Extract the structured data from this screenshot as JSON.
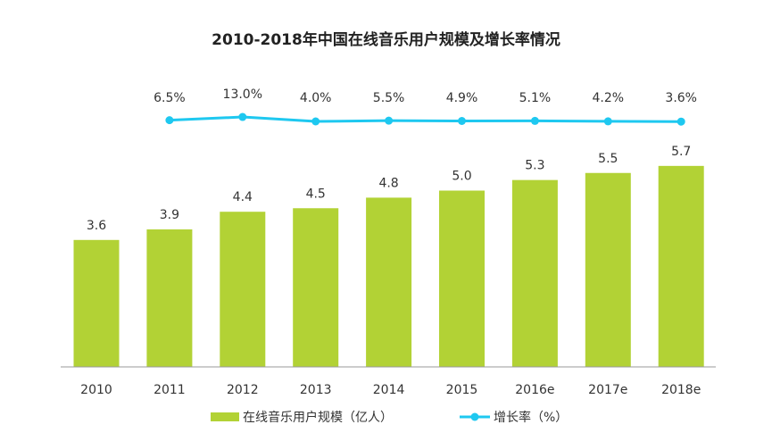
{
  "chart_data": {
    "type": "bar+line",
    "title": "2010-2018年中国在线音乐用户规模及增长率情况",
    "categories": [
      "2010",
      "2011",
      "2012",
      "2013",
      "2014",
      "2015",
      "2016e",
      "2017e",
      "2018e"
    ],
    "series": [
      {
        "name": "在线音乐用户规模（亿人）",
        "type": "bar",
        "color": "#b2d235",
        "values": [
          3.6,
          3.9,
          4.4,
          4.5,
          4.8,
          5.0,
          5.3,
          5.5,
          5.7
        ],
        "labels": [
          "3.6",
          "3.9",
          "4.4",
          "4.5",
          "4.8",
          "5.0",
          "5.3",
          "5.5",
          "5.7"
        ]
      },
      {
        "name": "增长率（%）",
        "type": "line",
        "color": "#1ec8f0",
        "x": [
          "2011",
          "2012",
          "2013",
          "2014",
          "2015",
          "2016e",
          "2017e",
          "2018e"
        ],
        "values": [
          6.5,
          13.0,
          4.0,
          5.5,
          4.9,
          5.1,
          4.2,
          3.6
        ],
        "labels": [
          "6.5%",
          "13.0%",
          "4.0%",
          "5.5%",
          "4.9%",
          "5.1%",
          "4.2%",
          "3.6%"
        ]
      }
    ],
    "legend_position": "bottom",
    "grid": false
  },
  "legend": {
    "bar": "在线音乐用户规模（亿人）",
    "line": "增长率（%）"
  }
}
